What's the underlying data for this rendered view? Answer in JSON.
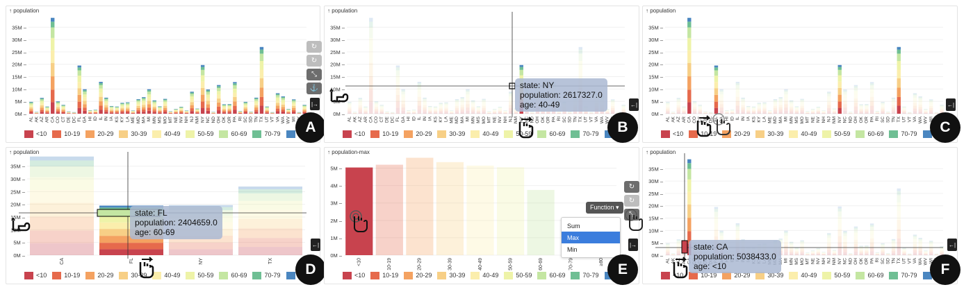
{
  "legend": [
    {
      "label": "<10",
      "color": "#c8434e"
    },
    {
      "label": "10-19",
      "color": "#e66a4c"
    },
    {
      "label": "20-29",
      "color": "#f4a261"
    },
    {
      "label": "30-39",
      "color": "#f7cf86"
    },
    {
      "label": "40-49",
      "color": "#fbeeac"
    },
    {
      "label": "50-59",
      "color": "#eef3a8"
    },
    {
      "label": "60-69",
      "color": "#c4e6a2"
    },
    {
      "label": "70-79",
      "color": "#6fbf94"
    },
    {
      "label": "≥80",
      "color": "#4a86c0"
    }
  ],
  "icons": {
    "hand_point": "pointing-hand-icon",
    "hand_drag": "drag-hand-icon",
    "hand_pinch": "pinch-hand-icon",
    "hand_tap": "tap-hand-icon",
    "expand": "expand-arrow-icon"
  },
  "panels": {
    "A": {
      "badge": "A",
      "ylabel": "↑ population",
      "expand": "|→"
    },
    "B": {
      "badge": "B",
      "ylabel": "↑ population",
      "expand": "←|",
      "tooltip": {
        "l1": "state: NY",
        "l2": "population: 2617327.0",
        "l3": "age: 40-49"
      }
    },
    "C": {
      "badge": "C",
      "ylabel": "↑ population",
      "expand": "←|"
    },
    "D": {
      "badge": "D",
      "ylabel": "↑ population",
      "expand": "←|",
      "tooltip": {
        "l1": "state: FL",
        "l2": "population: 2404659.0",
        "l3": "age: 60-69"
      }
    },
    "E": {
      "badge": "E",
      "ylabel": "↑ population-max",
      "expand": "|→",
      "function_label": "Function ▾",
      "menu": [
        "Sum",
        "Max",
        "Min"
      ],
      "menu_selected": "Max"
    },
    "F": {
      "badge": "F",
      "ylabel": "↑ population",
      "expand": "←|",
      "tooltip": {
        "l1": "state: CA",
        "l2": "population: 5038433.0",
        "l3": "age: <10"
      }
    }
  },
  "chart_data": [
    {
      "panel": "A",
      "type": "bar",
      "stacked": true,
      "yticks": [
        "0M",
        "5M",
        "10M",
        "15M",
        "20M",
        "25M",
        "30M",
        "35M"
      ],
      "ylim": [
        0,
        39
      ],
      "categories": [
        "AL",
        "AK",
        "AZ",
        "AR",
        "CA",
        "CO",
        "CT",
        "DE",
        "DC",
        "FL",
        "GA",
        "HI",
        "ID",
        "IL",
        "IN",
        "IA",
        "KS",
        "KY",
        "LA",
        "ME",
        "MD",
        "MA",
        "MI",
        "MN",
        "MS",
        "MO",
        "MT",
        "NE",
        "NV",
        "NH",
        "NJ",
        "NM",
        "NY",
        "NC",
        "ND",
        "OH",
        "OK",
        "OR",
        "PA",
        "RI",
        "SC",
        "SD",
        "TN",
        "TX",
        "UT",
        "VT",
        "VA",
        "WA",
        "WV",
        "WI",
        "WY",
        "PR"
      ],
      "totals": [
        4.8,
        0.7,
        6.4,
        2.9,
        38.8,
        5.0,
        3.6,
        0.9,
        0.6,
        19.5,
        9.9,
        1.4,
        1.6,
        12.9,
        6.5,
        3.1,
        2.9,
        4.4,
        4.6,
        1.3,
        5.9,
        6.7,
        9.9,
        5.4,
        3.0,
        6.0,
        1.0,
        1.9,
        2.8,
        1.3,
        8.9,
        2.1,
        19.7,
        9.8,
        0.7,
        11.6,
        3.8,
        3.9,
        12.8,
        1.1,
        4.8,
        0.8,
        6.5,
        27.0,
        2.9,
        0.6,
        8.3,
        7.0,
        1.9,
        5.8,
        0.6,
        3.6
      ]
    },
    {
      "panel": "E",
      "type": "bar",
      "yticks": [
        "0M",
        "1M",
        "2M",
        "3M",
        "4M",
        "5M"
      ],
      "ylim": [
        0,
        5.7
      ],
      "categories": [
        "<10",
        "10-19",
        "20-29",
        "30-39",
        "40-49",
        "50-59",
        "60-69",
        "70-79",
        "≥80"
      ],
      "values": [
        5.04,
        5.2,
        5.6,
        5.35,
        5.15,
        5.05,
        3.75,
        0,
        0
      ]
    },
    {
      "panel": "D",
      "type": "bar",
      "stacked": true,
      "yticks": [
        "0M",
        "5M",
        "10M",
        "15M",
        "20M",
        "25M",
        "30M",
        "35M"
      ],
      "ylim": [
        0,
        39
      ],
      "categories": [
        "CA",
        "FL",
        "NY",
        "TX"
      ],
      "totals": [
        38.8,
        19.5,
        19.7,
        27.0
      ]
    }
  ]
}
